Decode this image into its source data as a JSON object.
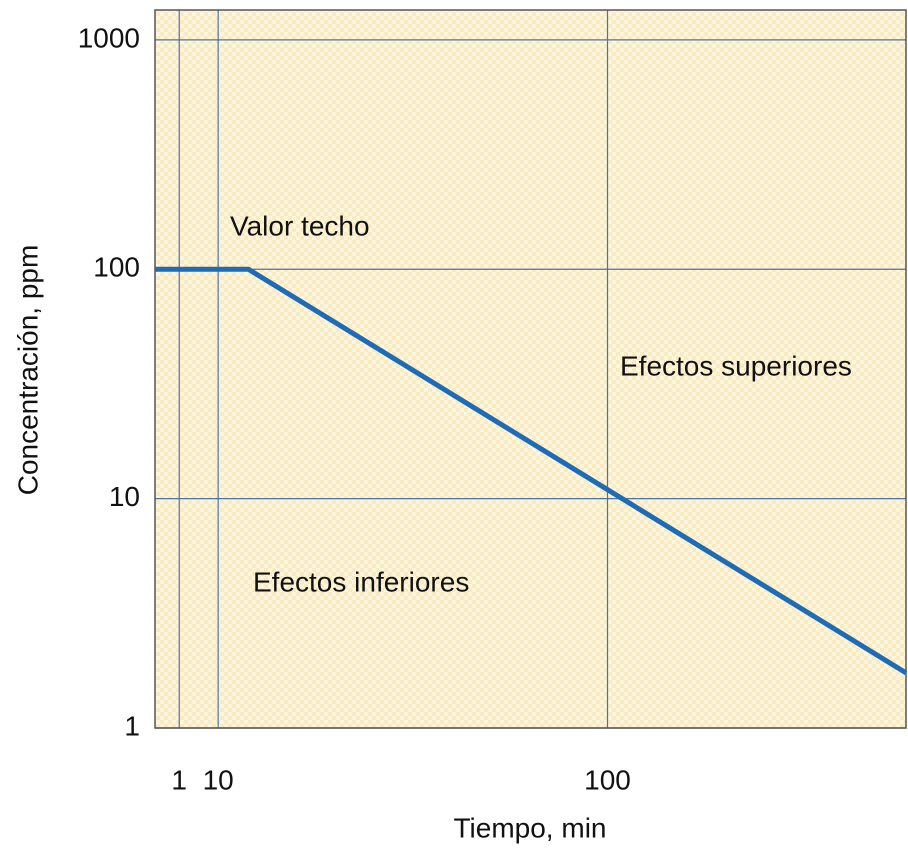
{
  "chart_data": {
    "type": "line",
    "xlabel": "Tiempo, min",
    "ylabel": "Concentración, ppm",
    "x": [
      -4.6,
      17,
      169
    ],
    "series": [
      {
        "color": "#1f6bb5",
        "values": [
          100,
          100,
          1.74
        ]
      }
    ],
    "xlim": [
      -4.6,
      169
    ],
    "ylim": [
      1,
      1350
    ],
    "xticks": [
      1,
      10,
      100
    ],
    "yticks": [
      1,
      10,
      100,
      1000
    ],
    "yscale": "log",
    "grid": true,
    "annotations": [
      "Valor techo",
      "Efectos superiores",
      "Efectos inferiores"
    ]
  }
}
